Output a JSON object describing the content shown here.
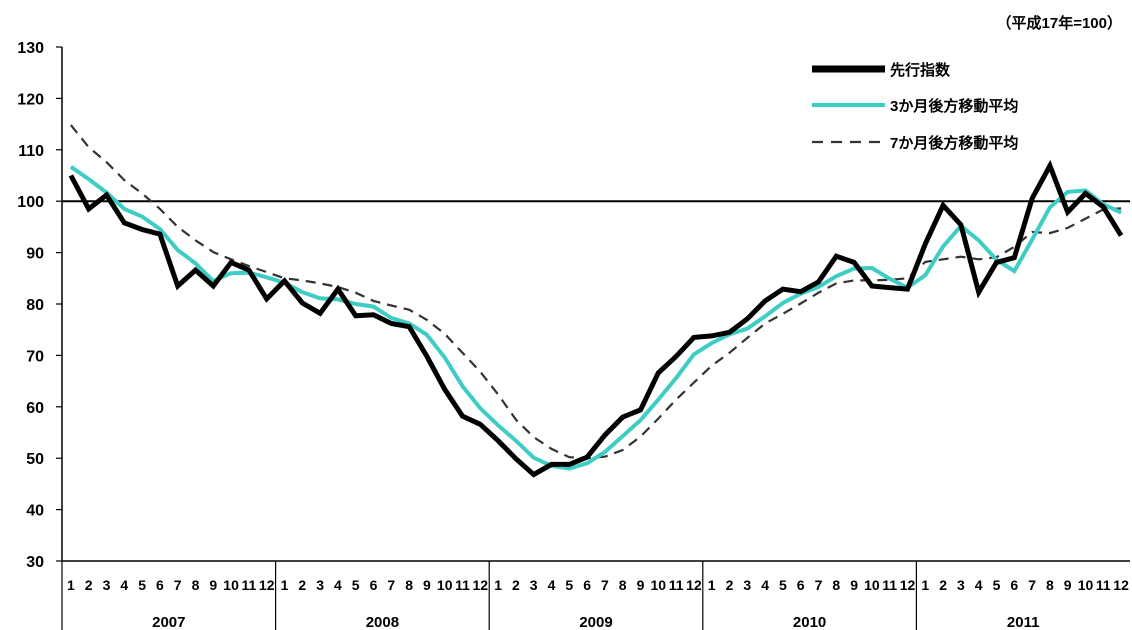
{
  "unit_note": "（平成17年=100）",
  "chart_data": {
    "type": "line",
    "ylim": [
      30,
      130
    ],
    "yticks": [
      30,
      40,
      50,
      60,
      70,
      80,
      90,
      100,
      110,
      120,
      130
    ],
    "reference_line": 100,
    "years": [
      "2007",
      "2008",
      "2009",
      "2010",
      "2011"
    ],
    "months": [
      "1",
      "2",
      "3",
      "4",
      "5",
      "6",
      "7",
      "8",
      "9",
      "10",
      "11",
      "12"
    ],
    "legend_position": "top-right",
    "series": [
      {
        "name": "先行指数",
        "color": "#000000",
        "style": "solid-thick",
        "values": [
          105,
          98.5,
          101.2,
          95.8,
          94.5,
          93.6,
          83.5,
          86.6,
          83.5,
          88.1,
          86.6,
          81,
          84.5,
          80.2,
          78.2,
          82.9,
          77.7,
          77.9,
          76.2,
          75.6,
          69.8,
          63.4,
          58.2,
          56.6,
          53.4,
          49.9,
          46.8,
          48.8,
          48.8,
          50.2,
          54.5,
          58,
          59.4,
          66.6,
          69.8,
          73.5,
          73.8,
          74.5,
          77.1,
          80.6,
          82.9,
          82.4,
          84.3,
          89.3,
          88.1,
          83.5,
          83.2,
          82.9,
          91.7,
          99.2,
          95.4,
          82.3,
          88.1,
          89,
          100.5,
          106.9,
          97.9,
          101.5,
          98.9,
          93.3
        ]
      },
      {
        "name": "3か月後方移動平均",
        "color": "#3ecdc4",
        "style": "solid-medium",
        "values": [
          106.7,
          104.3,
          101.7,
          98.5,
          97,
          94.6,
          90.5,
          87.9,
          84.5,
          86,
          86.1,
          85.2,
          84.1,
          82.3,
          81.1,
          80.9,
          80,
          79.5,
          77.3,
          76.2,
          74,
          69.6,
          64,
          59.7,
          56.4,
          53.4,
          50.1,
          48.5,
          48,
          49,
          51.2,
          54.3,
          57.4,
          61.4,
          65.6,
          70.2,
          72.4,
          74.1,
          75.2,
          77.6,
          80.2,
          82,
          83.3,
          85.4,
          86.9,
          87,
          84.9,
          83.2,
          85.6,
          91.2,
          95.2,
          92.4,
          88.6,
          86.4,
          92.5,
          98.8,
          101.8,
          102.1,
          99.4,
          97.8
        ]
      },
      {
        "name": "7か月後方移動平均",
        "color": "#333333",
        "style": "dashed",
        "values": [
          114.8,
          110.5,
          107.6,
          104.1,
          101.5,
          98.5,
          95,
          92.4,
          90.1,
          88.7,
          87.4,
          86.2,
          85,
          84.6,
          84,
          83.3,
          82.2,
          80.6,
          79.7,
          78.9,
          76.9,
          74.2,
          70.5,
          66.8,
          62.4,
          57.5,
          54.1,
          51.8,
          50.2,
          50,
          50.3,
          51.6,
          54.2,
          57.7,
          61.4,
          64.7,
          68,
          70.5,
          73.4,
          76.2,
          78.1,
          80.1,
          82.2,
          84,
          84.6,
          84.6,
          84.7,
          85,
          88.2,
          88.7,
          89.2,
          88.7,
          89.1,
          91.1,
          94,
          93.8,
          94.8,
          96.6,
          98.4,
          98.6
        ]
      }
    ]
  }
}
